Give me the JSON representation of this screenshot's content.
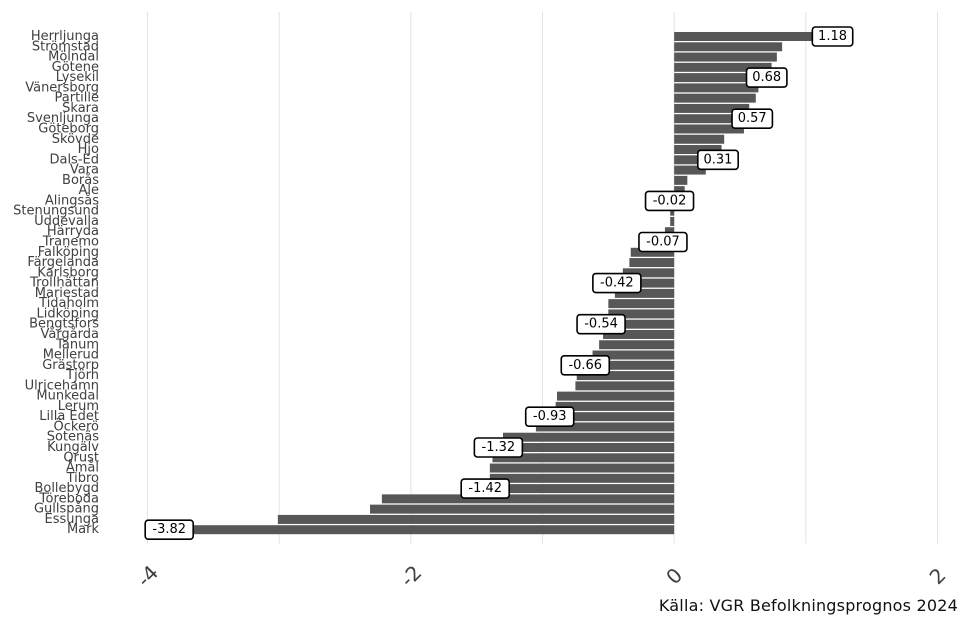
{
  "source": "Källa: VGR Befolkningsprognos 2024",
  "colors": {
    "bar": "#575757",
    "grid": "#e3e3e3",
    "text": "#404040",
    "label_border": "#000000"
  },
  "chart_data": {
    "type": "bar",
    "orientation": "horizontal",
    "grid": true,
    "xlim": [
      -4.0,
      2.0
    ],
    "x_ticks": [
      "-4",
      "-2",
      "0",
      "2"
    ],
    "x_tick_values": [
      -4,
      -2,
      0,
      2
    ],
    "categories": [
      "Herrljunga",
      "Strömstad",
      "Mölndal",
      "Götene",
      "Lysekil",
      "Vänersborg",
      "Partille",
      "Skara",
      "Svenljunga",
      "Göteborg",
      "Skövde",
      "Hjo",
      "Dals-Ed",
      "Vara",
      "Borås",
      "Ale",
      "Alingsås",
      "Stenungsund",
      "Uddevalla",
      "Härryda",
      "Tranemo",
      "Falköping",
      "Färgelanda",
      "Karlsborg",
      "Trollhättan",
      "Mariestad",
      "Tidaholm",
      "Lidköping",
      "Bengtsfors",
      "Vårgårda",
      "Tanum",
      "Mellerud",
      "Grästorp",
      "Tjörn",
      "Ulricehamn",
      "Munkedal",
      "Lerum",
      "Lilla Edet",
      "Öckerö",
      "Sotenäs",
      "Kungälv",
      "Orust",
      "Åmål",
      "Tibro",
      "Bollebygd",
      "Töreboda",
      "Gullspång",
      "Essunga",
      "Mark"
    ],
    "values": [
      1.18,
      0.82,
      0.78,
      0.74,
      0.68,
      0.64,
      0.62,
      0.57,
      0.57,
      0.53,
      0.38,
      0.36,
      0.31,
      0.24,
      0.1,
      0.08,
      -0.02,
      -0.03,
      -0.03,
      -0.07,
      -0.07,
      -0.33,
      -0.34,
      -0.39,
      -0.42,
      -0.45,
      -0.5,
      -0.5,
      -0.54,
      -0.54,
      -0.57,
      -0.62,
      -0.66,
      -0.74,
      -0.75,
      -0.89,
      -0.9,
      -0.93,
      -1.05,
      -1.3,
      -1.32,
      -1.38,
      -1.4,
      -1.4,
      -1.42,
      -2.22,
      -2.31,
      -3.01,
      -3.82
    ],
    "data_labels": [
      {
        "category": "Herrljunga",
        "text": "1.18"
      },
      {
        "category": "Lysekil",
        "text": "0.68"
      },
      {
        "category": "Svenljunga",
        "text": "0.57"
      },
      {
        "category": "Dals-Ed",
        "text": "0.31"
      },
      {
        "category": "Alingsås",
        "text": "-0.02"
      },
      {
        "category": "Tranemo",
        "text": "-0.07"
      },
      {
        "category": "Trollhättan",
        "text": "-0.42"
      },
      {
        "category": "Bengtsfors",
        "text": "-0.54"
      },
      {
        "category": "Grästorp",
        "text": "-0.66"
      },
      {
        "category": "Lilla Edet",
        "text": "-0.93"
      },
      {
        "category": "Kungälv",
        "text": "-1.32"
      },
      {
        "category": "Bollebygd",
        "text": "-1.42"
      },
      {
        "category": "Mark",
        "text": "-3.82"
      }
    ]
  }
}
